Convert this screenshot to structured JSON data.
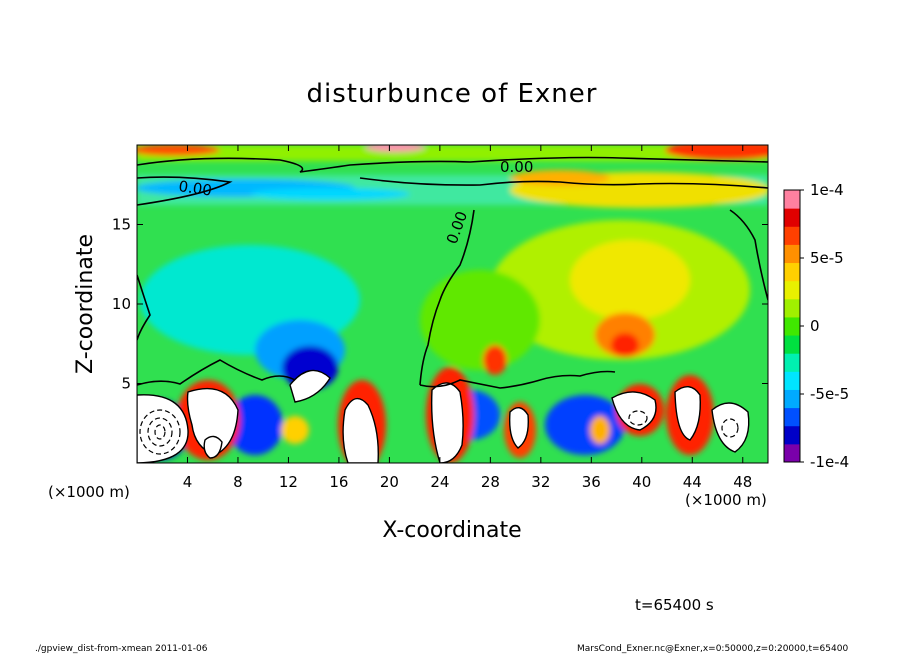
{
  "chart_data": {
    "type": "heatmap",
    "title": "disturbunce of Exner",
    "xlabel": "X-coordinate",
    "ylabel": "Z-coordinate",
    "x_unit": "(×1000 m)",
    "y_unit": "(×1000 m)",
    "xlim": [
      0,
      50
    ],
    "ylim": [
      0,
      20
    ],
    "x_ticks": [
      "4",
      "8",
      "12",
      "16",
      "20",
      "24",
      "28",
      "32",
      "36",
      "40",
      "44",
      "48"
    ],
    "y_ticks": [
      "5",
      "10",
      "15"
    ],
    "x_tick_values": [
      4,
      8,
      12,
      16,
      20,
      24,
      28,
      32,
      36,
      40,
      44,
      48
    ],
    "y_tick_values": [
      5,
      10,
      15
    ],
    "colorbar": {
      "min": -0.0001,
      "max": 0.0001,
      "labels": [
        "1e-4",
        "5e-5",
        "0",
        "-5e-5",
        "-1e-4"
      ],
      "label_values": [
        0.0001,
        5e-05,
        0,
        -5e-05,
        -0.0001
      ],
      "colors": [
        "#7a00aa",
        "#0000c8",
        "#0050ff",
        "#00aaff",
        "#00e5ff",
        "#00f0b0",
        "#00e040",
        "#40e800",
        "#a0f000",
        "#e8f000",
        "#ffd000",
        "#ff9000",
        "#ff4000",
        "#e00000",
        "#ff80a0"
      ]
    },
    "contour_labels": [
      "0.00",
      "0.00",
      "0.00"
    ],
    "contour_label_values": [
      0,
      0,
      0
    ],
    "grid": false
  },
  "annotations": {
    "time": "t=65400 s",
    "footer_left": "./gpview_dist-from-xmean   2011-01-06",
    "footer_right": "MarsCond_Exner.nc@Exner,x=0:50000,z=0:20000,t=65400"
  }
}
